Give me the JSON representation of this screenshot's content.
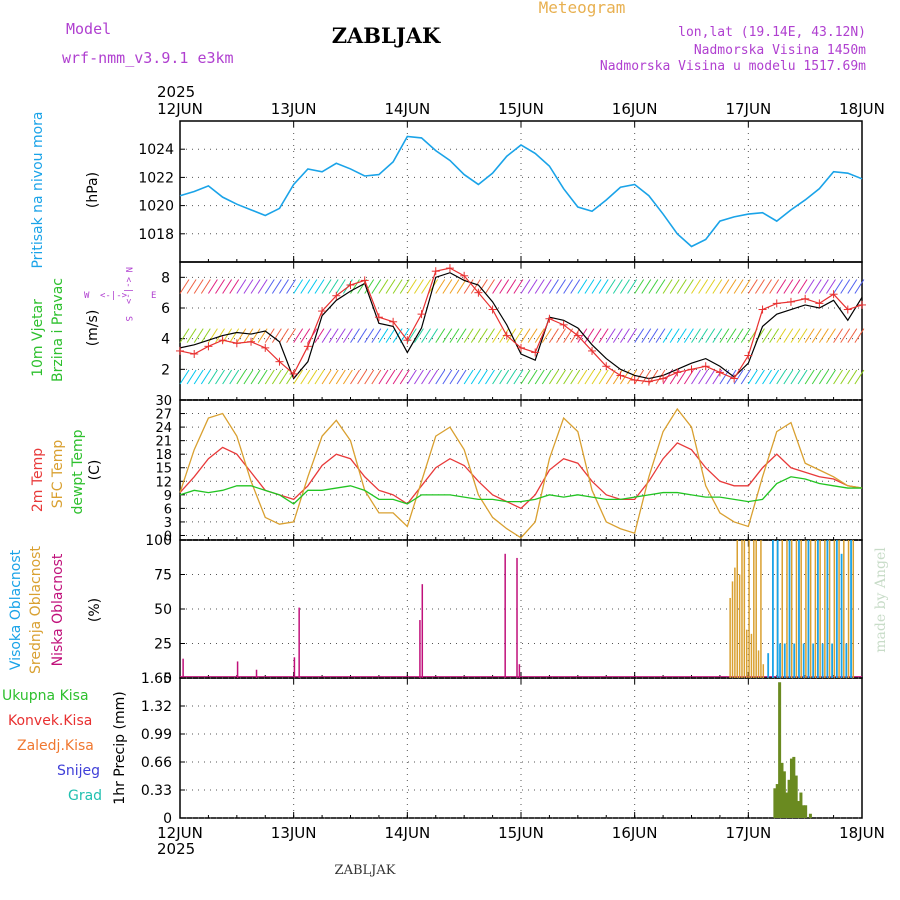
{
  "header": {
    "model_label": "Model",
    "model_name": "wrf-nmm_v3.9.1 e3km",
    "location_title": "ZABLJAK",
    "meteogram_label": "Meteogram",
    "lonlat": "lon,lat (19.14E, 43.12N)",
    "elevation": "Nadmorska Visina 1450m",
    "model_elevation": "Nadmorska Visina u modelu 1517.69m",
    "year": "2025"
  },
  "footer": {
    "location": "ZABLJAK",
    "credit": "made by Angel"
  },
  "colors": {
    "pressure": "#1aa3e8",
    "wind_obs": "#e83030",
    "wind_model": "#000000",
    "temp_2m": "#e83a3a",
    "temp_sfc": "#d9a030",
    "temp_dew": "#22c422",
    "cloud_high": "#1aa3e8",
    "cloud_mid": "#d9a030",
    "cloud_low": "#c0107a",
    "precip_total": "#2ec02e",
    "precip_conv": "#e83030",
    "precip_frozen": "#f07830",
    "precip_snow": "#4040d8",
    "precip_hail": "#20c0b0",
    "label_cyan": "#1aa3e8",
    "label_green": "#2ec02e",
    "label_purple": "#b040d0"
  },
  "chart_data": [
    {
      "type": "line",
      "id": "pressure",
      "ylabel": "Pritisak na nivou mora",
      "unit": "(hPa)",
      "x_ticks": [
        "12JUN",
        "13JUN",
        "14JUN",
        "15JUN",
        "16JUN",
        "17JUN",
        "18JUN"
      ],
      "yticks": [
        "1018",
        "1020",
        "1022",
        "1024"
      ],
      "ylim": [
        1016,
        1026
      ],
      "x_hours": [
        0,
        3,
        6,
        9,
        12,
        15,
        18,
        21,
        24,
        27,
        30,
        33,
        36,
        39,
        42,
        45,
        48,
        51,
        54,
        57,
        60,
        63,
        66,
        69,
        72,
        75,
        78,
        81,
        84,
        87,
        90,
        93,
        96,
        99,
        102,
        105,
        108,
        111,
        114,
        117,
        120,
        123,
        126,
        129,
        132,
        135,
        138,
        141,
        144
      ],
      "series": [
        {
          "values": [
            1020.7,
            1021.0,
            1021.4,
            1020.6,
            1020.1,
            1019.7,
            1019.3,
            1019.8,
            1021.5,
            1022.6,
            1022.4,
            1023.0,
            1022.6,
            1022.1,
            1022.2,
            1023.1,
            1024.9,
            1024.8,
            1023.9,
            1023.2,
            1022.2,
            1021.5,
            1022.3,
            1023.5,
            1024.3,
            1023.7,
            1022.8,
            1021.2,
            1019.9,
            1019.6,
            1020.4,
            1021.3,
            1021.5,
            1020.7,
            1019.4,
            1018.0,
            1017.1,
            1017.6,
            1018.9,
            1019.2,
            1019.4,
            1019.5,
            1018.9,
            1019.7,
            1020.4,
            1021.2,
            1022.4,
            1022.3,
            1021.9
          ]
        }
      ]
    },
    {
      "type": "line",
      "id": "wind",
      "ylabel": "10m Vjetar Brzina i Pravac",
      "unit": "(m/s)",
      "compass": {
        "n": "N",
        "e": "E",
        "w": "W",
        "s": "S"
      },
      "yticks": [
        "2",
        "4",
        "6",
        "8"
      ],
      "ylim": [
        0,
        9
      ],
      "x_hours": [
        0,
        3,
        6,
        9,
        12,
        15,
        18,
        21,
        24,
        27,
        30,
        33,
        36,
        39,
        42,
        45,
        48,
        51,
        54,
        57,
        60,
        63,
        66,
        69,
        72,
        75,
        78,
        81,
        84,
        87,
        90,
        93,
        96,
        99,
        102,
        105,
        108,
        111,
        114,
        117,
        120,
        123,
        126,
        129,
        132,
        135,
        138,
        141,
        144
      ],
      "series": [
        {
          "name": "model",
          "values": [
            3.4,
            3.6,
            3.9,
            4.2,
            4.4,
            4.3,
            4.5,
            3.8,
            1.4,
            2.5,
            5.5,
            6.5,
            7.1,
            7.6,
            5.0,
            4.8,
            3.1,
            4.7,
            8.0,
            8.3,
            7.8,
            7.5,
            6.4,
            4.9,
            3.0,
            2.6,
            5.4,
            5.2,
            4.7,
            3.6,
            2.7,
            2.0,
            1.6,
            1.4,
            1.6,
            2.0,
            2.4,
            2.7,
            2.2,
            1.5,
            2.4,
            4.8,
            5.6,
            5.9,
            6.2,
            6.0,
            6.5,
            5.2,
            6.7
          ]
        },
        {
          "name": "arrows",
          "values": [
            3.2,
            3.0,
            3.5,
            3.9,
            3.7,
            3.8,
            3.4,
            2.5,
            1.7,
            3.5,
            5.8,
            6.8,
            7.5,
            7.8,
            5.4,
            5.1,
            3.9,
            5.6,
            8.4,
            8.6,
            8.1,
            7.0,
            5.9,
            4.2,
            3.4,
            3.1,
            5.3,
            4.9,
            4.2,
            3.2,
            2.2,
            1.6,
            1.3,
            1.2,
            1.4,
            1.8,
            2.0,
            2.2,
            1.8,
            1.4,
            2.9,
            5.9,
            6.3,
            6.4,
            6.6,
            6.3,
            6.9,
            5.9,
            6.2
          ]
        }
      ]
    },
    {
      "type": "line",
      "id": "temperature",
      "ylabel_2m": "2m Temp",
      "ylabel_sfc": "SFC Temp",
      "ylabel_dew": "dewpt Temp",
      "unit": "(C)",
      "yticks": [
        "0",
        "3",
        "6",
        "9",
        "12",
        "15",
        "18",
        "21",
        "24",
        "27",
        "30"
      ],
      "ylim": [
        -1,
        30
      ],
      "x_hours": [
        0,
        3,
        6,
        9,
        12,
        15,
        18,
        21,
        24,
        27,
        30,
        33,
        36,
        39,
        42,
        45,
        48,
        51,
        54,
        57,
        60,
        63,
        66,
        69,
        72,
        75,
        78,
        81,
        84,
        87,
        90,
        93,
        96,
        99,
        102,
        105,
        108,
        111,
        114,
        117,
        120,
        123,
        126,
        129,
        132,
        135,
        138,
        141,
        144
      ],
      "series": [
        {
          "name": "2m",
          "values": [
            9.5,
            13,
            17,
            19.5,
            18,
            14,
            10,
            9,
            8,
            11,
            15.5,
            18,
            17,
            13,
            10,
            9,
            7,
            11,
            15,
            17,
            15.5,
            12,
            9,
            7.5,
            6,
            9,
            14.5,
            17,
            16,
            12,
            9,
            8,
            8,
            12,
            17,
            20.5,
            19,
            15,
            12,
            11,
            11,
            15,
            18,
            15,
            14,
            13,
            12.5,
            11,
            10.5
          ]
        },
        {
          "name": "sfc",
          "values": [
            9.5,
            19,
            26,
            27,
            22,
            12,
            4,
            2.5,
            3,
            13,
            22,
            25.5,
            21,
            10,
            5,
            5,
            2,
            12,
            22,
            24,
            19,
            9,
            4,
            1.5,
            -0.5,
            3,
            17,
            26,
            23,
            10,
            3,
            1.5,
            0.5,
            13,
            23,
            28,
            24,
            11,
            5,
            3,
            2,
            13,
            23,
            25,
            16,
            14.5,
            13,
            11,
            10.5
          ]
        },
        {
          "name": "dew",
          "values": [
            9,
            10,
            9.5,
            10,
            11,
            11,
            10,
            9,
            7,
            10,
            10,
            10.5,
            11,
            10,
            8,
            8,
            7,
            9,
            9,
            9,
            8.5,
            8,
            8,
            7.5,
            7.5,
            8,
            9,
            8.5,
            9,
            8.5,
            8,
            8,
            8.5,
            9,
            9.5,
            9.5,
            9,
            8.5,
            8.5,
            8,
            7.5,
            8,
            11.5,
            13,
            12.5,
            11.5,
            11,
            10.5,
            10.5
          ]
        }
      ]
    },
    {
      "type": "bar",
      "id": "clouds",
      "ylabel_high": "Visoka Oblacnost",
      "ylabel_mid": "Srednja Oblacnost",
      "ylabel_low": "Niska Oblacnost",
      "unit": "(%)",
      "yticks": [
        "0",
        "25",
        "50",
        "75",
        "100"
      ],
      "ylim": [
        0,
        100
      ],
      "low_bars": [
        [
          0.5,
          14
        ],
        [
          12,
          12
        ],
        [
          16,
          6
        ],
        [
          24,
          15
        ],
        [
          25,
          51
        ],
        [
          50.5,
          42
        ],
        [
          51,
          68
        ],
        [
          68.5,
          90
        ],
        [
          71,
          87
        ],
        [
          71.5,
          10
        ]
      ],
      "mid_bars": [
        [
          116,
          58
        ],
        [
          116.5,
          70
        ],
        [
          117,
          80
        ],
        [
          117.5,
          100
        ],
        [
          118,
          75
        ],
        [
          118.5,
          100
        ],
        [
          119,
          100
        ],
        [
          119.5,
          35
        ],
        [
          120,
          100
        ],
        [
          120.5,
          32
        ],
        [
          121,
          100
        ],
        [
          121.5,
          100
        ],
        [
          122,
          20
        ],
        [
          122.5,
          100
        ],
        [
          123,
          10
        ],
        [
          126,
          100
        ],
        [
          127,
          100
        ],
        [
          128,
          100
        ],
        [
          129,
          100
        ],
        [
          130,
          100
        ],
        [
          131,
          100
        ],
        [
          132,
          100
        ],
        [
          133,
          100
        ],
        [
          134,
          100
        ],
        [
          135,
          100
        ],
        [
          136,
          100
        ],
        [
          137,
          100
        ],
        [
          138,
          100
        ],
        [
          139,
          100
        ],
        [
          140,
          100
        ],
        [
          141,
          100
        ],
        [
          142,
          100
        ]
      ],
      "high_bars": [
        [
          124,
          18
        ],
        [
          125,
          100
        ],
        [
          126,
          100
        ],
        [
          126.5,
          25
        ],
        [
          127.5,
          25
        ],
        [
          128.5,
          100
        ],
        [
          129.5,
          25
        ],
        [
          130.5,
          100
        ],
        [
          131.5,
          25
        ],
        [
          132.5,
          100
        ],
        [
          133.5,
          25
        ],
        [
          134.5,
          100
        ],
        [
          135.5,
          25
        ],
        [
          136.5,
          100
        ],
        [
          137.5,
          25
        ],
        [
          138.5,
          100
        ],
        [
          139.5,
          90
        ],
        [
          140.5,
          25
        ],
        [
          141.5,
          100
        ]
      ],
      "base_line_pct": 1
    },
    {
      "type": "bar",
      "id": "precip",
      "ylabel": "1hr Precip (mm)",
      "legend": [
        "Ukupna Kisa",
        "Konvek.Kisa",
        "Zaledj.Kisa",
        "Snijeg",
        "Grad"
      ],
      "yticks": [
        "0",
        "0.33",
        "0.66",
        "0.99",
        "1.32",
        "1.65"
      ],
      "ylim": [
        0,
        1.65
      ],
      "bars": [
        [
          125.5,
          0.35
        ],
        [
          126,
          0.4
        ],
        [
          126.5,
          1.6
        ],
        [
          127,
          0.65
        ],
        [
          127.5,
          0.55
        ],
        [
          128,
          0.3
        ],
        [
          128.5,
          0.45
        ],
        [
          129,
          0.7
        ],
        [
          129.5,
          0.72
        ],
        [
          130,
          0.5
        ],
        [
          130.5,
          0.2
        ],
        [
          131,
          0.3
        ],
        [
          131.5,
          0.15
        ],
        [
          132,
          0.15
        ],
        [
          133,
          0.05
        ]
      ]
    }
  ]
}
